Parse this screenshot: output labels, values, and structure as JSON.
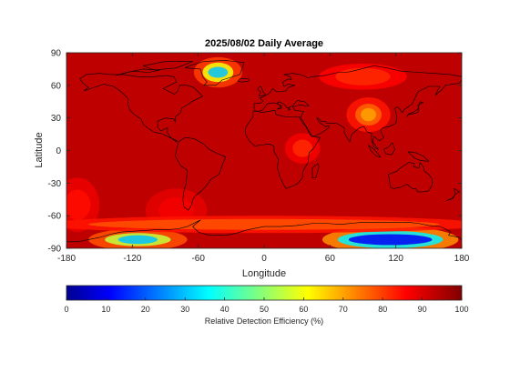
{
  "chart_data": {
    "type": "heatmap",
    "title": "2025/08/02 Daily Average",
    "xlabel": "Longitude",
    "ylabel": "Latitude",
    "xlim": [
      -180,
      180
    ],
    "ylim": [
      -90,
      90
    ],
    "xticks": [
      -180,
      -120,
      -60,
      0,
      60,
      120,
      180
    ],
    "yticks": [
      90,
      60,
      30,
      0,
      -30,
      -60,
      -90
    ],
    "colorbar": {
      "label": "Relative Detection Efficiency (%)",
      "range": [
        0,
        100
      ],
      "ticks": [
        0,
        10,
        20,
        30,
        40,
        50,
        60,
        70,
        80,
        90,
        100
      ],
      "colormap": "jet"
    },
    "background_value": 93,
    "features": [
      {
        "name": "Greenland minimum",
        "lon": -42,
        "lat": 72,
        "value": 25
      },
      {
        "name": "East Antarctica minimum",
        "lon": 115,
        "lat": -82,
        "value": 8
      },
      {
        "name": "West Antarctica minimum",
        "lon": -115,
        "lat": -82,
        "value": 25
      },
      {
        "name": "Tibetan Plateau",
        "lon": 95,
        "lat": 33,
        "value": 72
      },
      {
        "name": "Northern Siberia",
        "lon": 90,
        "lat": 68,
        "value": 82
      },
      {
        "name": "East Africa",
        "lon": 35,
        "lat": 2,
        "value": 82
      },
      {
        "name": "Western South Pacific",
        "lon": -170,
        "lat": -50,
        "value": 86
      },
      {
        "name": "Southeast Pacific",
        "lon": -80,
        "lat": -55,
        "value": 87
      },
      {
        "name": "Southern Ocean band",
        "lon": 0,
        "lat": -68,
        "value": 78
      }
    ]
  }
}
